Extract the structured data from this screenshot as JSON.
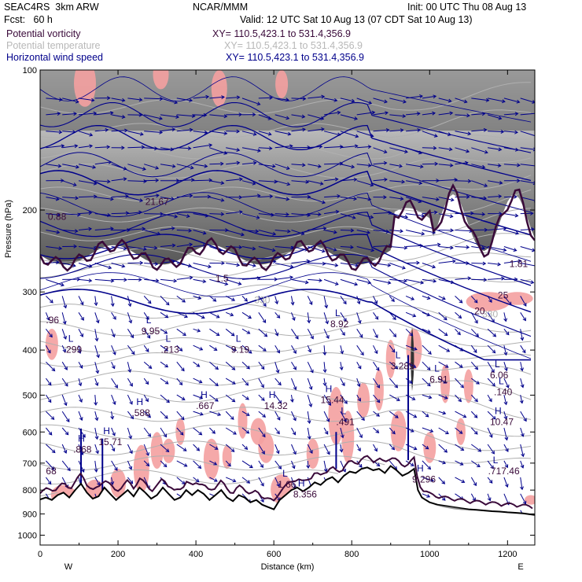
{
  "header": {
    "left_line1": "SEAC4RS  3km ARW",
    "left_line2": "Fcst:   60 h",
    "center_line1": "NCAR/MMM",
    "init": "Init: 00 UTC Thu 08 Aug 13",
    "valid": "Valid: 12 UTC Sat 10 Aug 13 (07 CDT Sat 10 Aug 13)",
    "fields": [
      {
        "name": "Potential vorticity",
        "xy": "XY= 110.5,423.1 to 531.4,356.9",
        "color": "#3a0a3a"
      },
      {
        "name": "Potential temperature",
        "xy": "XY= 110.5,423.1 to 531.4,356.9",
        "color": "#b8b8b8"
      },
      {
        "name": "Horizontal wind speed",
        "xy": "XY= 110.5,423.1 to 531.4,356.9",
        "color": "#00008b"
      }
    ]
  },
  "chart_data": {
    "type": "heatmap",
    "description_fields": [
      "Potential vorticity",
      "Potential temperature",
      "Horizontal wind speed"
    ],
    "xlabel": "Distance (km)",
    "ylabel": "Pressure (hPa)",
    "xlim": [
      0,
      1270
    ],
    "ylim": [
      100,
      1050
    ],
    "y_scale": "log",
    "y_inverted": true,
    "x_ticks": [
      0,
      200,
      400,
      600,
      800,
      1000,
      1200
    ],
    "y_ticks": [
      100,
      200,
      300,
      400,
      500,
      600,
      700,
      800,
      900,
      1000
    ],
    "x_end_labels": {
      "left": "W",
      "right": "E"
    },
    "theta_labels": [
      {
        "text": "330",
        "x": 550,
        "p": 317
      },
      {
        "text": "330",
        "x": 1135,
        "p": 340
      }
    ],
    "extrema_labels": [
      {
        "mark": "L",
        "value": "9.95",
        "x": 260,
        "p": 370
      },
      {
        "mark": "L",
        "value": "8.92",
        "x": 745,
        "p": 357
      },
      {
        "mark": "L",
        "value": ".299",
        "x": 60,
        "p": 405
      },
      {
        "mark": "L",
        "value": ".213",
        "x": 310,
        "p": 405
      },
      {
        "mark": "L",
        "value": "9.19",
        "x": 490,
        "p": 405
      },
      {
        "mark": "L",
        "value": "3.289",
        "x": 900,
        "p": 440
      },
      {
        "mark": "L",
        "value": "6.91",
        "x": 1000,
        "p": 470
      },
      {
        "mark": "L",
        "value": "6.06",
        "x": 1155,
        "p": 460
      },
      {
        "mark": "L",
        "value": ".140",
        "x": 1165,
        "p": 500
      },
      {
        "mark": "H",
        "value": "10.47",
        "x": 1155,
        "p": 580
      },
      {
        "mark": "H",
        "value": ".588",
        "x": 235,
        "p": 555
      },
      {
        "mark": "H",
        "value": ".667",
        "x": 400,
        "p": 535
      },
      {
        "mark": "H",
        "value": "14.32",
        "x": 575,
        "p": 535
      },
      {
        "mark": "H",
        "value": "15.44",
        "x": 720,
        "p": 520
      },
      {
        "mark": "L",
        "value": ".491",
        "x": 760,
        "p": 580
      },
      {
        "mark": "H",
        "value": "15.71",
        "x": 150,
        "p": 640
      },
      {
        "mark": "H",
        "value": ".868",
        "x": 85,
        "p": 665
      },
      {
        "mark": "L",
        "value": "1.66",
        "x": 610,
        "p": 790
      },
      {
        "mark": "H",
        "value": "8.356",
        "x": 650,
        "p": 830
      },
      {
        "mark": "L",
        "value": ".717.46",
        "x": 1150,
        "p": 740
      },
      {
        "mark": "H",
        "value": "9.296",
        "x": 955,
        "p": 770
      },
      {
        "mark": "",
        "value": "21.67",
        "x": 270,
        "p": 195
      },
      {
        "mark": "",
        "value": "1.5",
        "x": 450,
        "p": 285
      },
      {
        "mark": "",
        "value": "1.81",
        "x": 1205,
        "p": 265
      },
      {
        "mark": "",
        "value": "25",
        "x": 1175,
        "p": 310
      },
      {
        "mark": "",
        "value": "20",
        "x": 1115,
        "p": 335
      },
      {
        "mark": "",
        "value": ".96",
        "x": 15,
        "p": 350
      },
      {
        "mark": "",
        "value": "0.88",
        "x": 20,
        "p": 210
      },
      {
        "mark": "",
        "value": "68",
        "x": 15,
        "p": 740
      }
    ]
  },
  "colors": {
    "pv_shading": "#f4a0a0",
    "pv_contour": "#3a0a3a",
    "theta": "#b0b0b0",
    "wind": "#00008b",
    "terrain": "#000000"
  }
}
